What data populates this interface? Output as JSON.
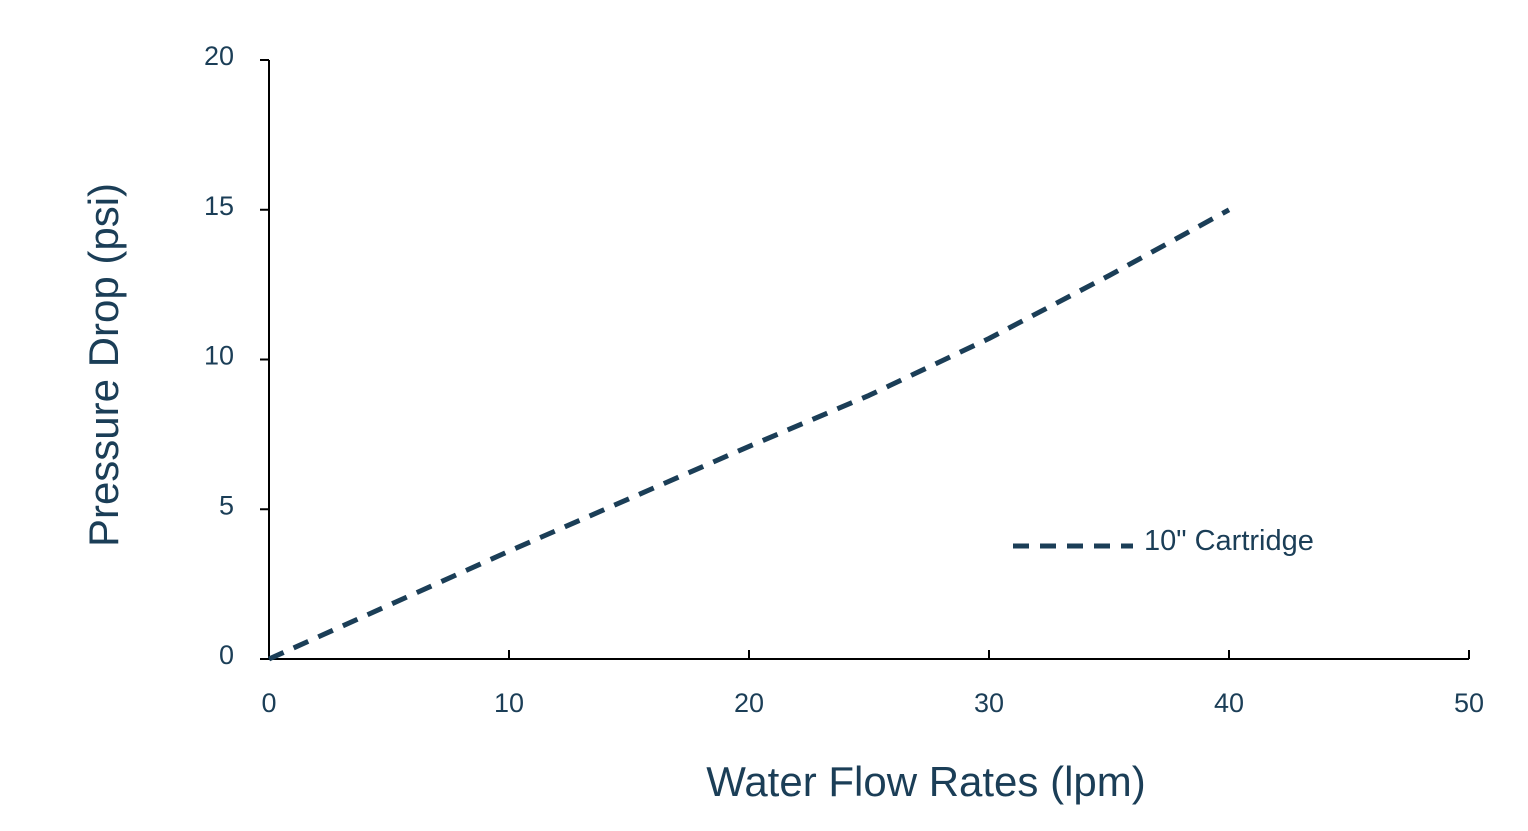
{
  "chart_data": {
    "type": "line",
    "title": "",
    "xlabel": "Water Flow Rates (lpm)",
    "ylabel": "Pressure Drop (psi)",
    "xlim": [
      0,
      50
    ],
    "ylim": [
      0,
      20
    ],
    "x_ticks": [
      0,
      10,
      20,
      30,
      40,
      50
    ],
    "y_ticks": [
      0,
      5,
      10,
      15,
      20
    ],
    "grid": false,
    "legend_position": "right",
    "series": [
      {
        "name": "10\" Cartridge",
        "line_style": "dashed",
        "color": "#1b3e57",
        "x": [
          0,
          5,
          10,
          15,
          20,
          25,
          30,
          35,
          40
        ],
        "y": [
          0,
          1.8,
          3.6,
          5.35,
          7.1,
          8.8,
          10.7,
          12.8,
          15.0
        ]
      }
    ]
  },
  "colors": {
    "ink": "#1b3e57",
    "axis": "#000000"
  }
}
